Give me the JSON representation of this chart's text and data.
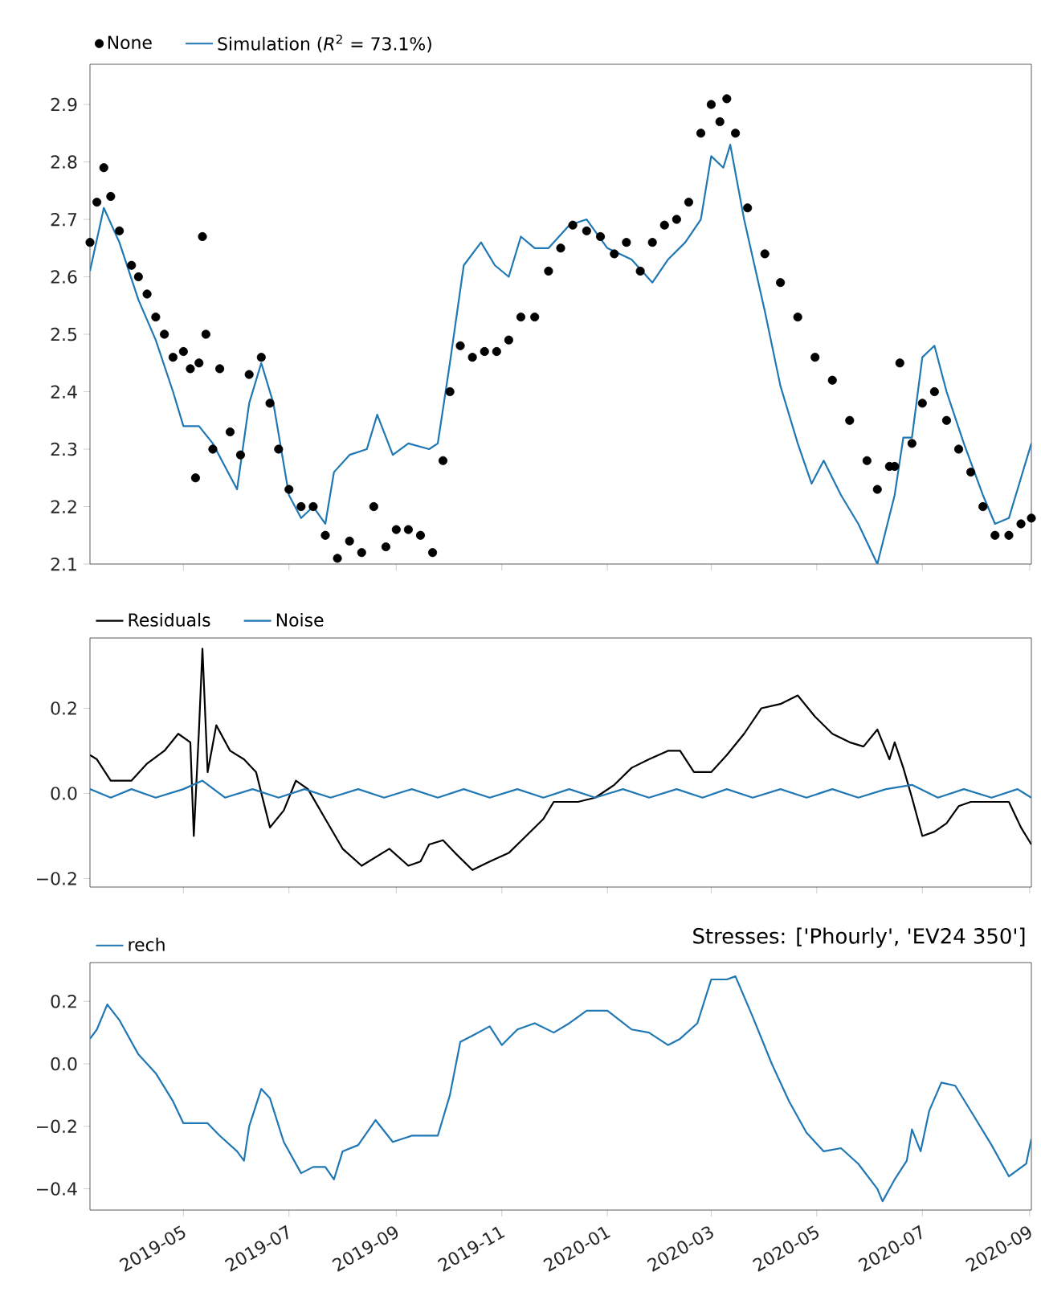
{
  "chart_data": [
    {
      "type": "line",
      "legend": "top left",
      "tick_labels": "y",
      "xlim": [
        "2019-03-08",
        "2020-09-02"
      ],
      "xticks": [
        "2019-05",
        "2019-07",
        "2019-09",
        "2019-11",
        "2020-01",
        "2020-03",
        "2020-05",
        "2020-07",
        "2020-09"
      ],
      "ylim": [
        2.1,
        2.97
      ],
      "yticks": [
        2.1,
        2.2,
        2.3,
        2.4,
        2.5,
        2.6,
        2.7,
        2.8,
        2.9
      ],
      "series": [
        {
          "name": "None",
          "type": "scatter",
          "color": "#000000",
          "x": [
            "2019-03-08",
            "2019-03-12",
            "2019-03-16",
            "2019-03-20",
            "2019-03-25",
            "2019-04-01",
            "2019-04-05",
            "2019-04-10",
            "2019-04-15",
            "2019-04-20",
            "2019-04-25",
            "2019-05-01",
            "2019-05-05",
            "2019-05-08",
            "2019-05-10",
            "2019-05-12",
            "2019-05-14",
            "2019-05-18",
            "2019-05-22",
            "2019-05-28",
            "2019-06-03",
            "2019-06-08",
            "2019-06-15",
            "2019-06-20",
            "2019-06-25",
            "2019-07-01",
            "2019-07-08",
            "2019-07-15",
            "2019-07-22",
            "2019-07-29",
            "2019-08-05",
            "2019-08-12",
            "2019-08-19",
            "2019-08-26",
            "2019-09-01",
            "2019-09-08",
            "2019-09-15",
            "2019-09-22",
            "2019-09-28",
            "2019-10-02",
            "2019-10-08",
            "2019-10-15",
            "2019-10-22",
            "2019-10-29",
            "2019-11-05",
            "2019-11-12",
            "2019-11-20",
            "2019-11-28",
            "2019-12-05",
            "2019-12-12",
            "2019-12-20",
            "2019-12-28",
            "2020-01-05",
            "2020-01-12",
            "2020-01-20",
            "2020-01-27",
            "2020-02-03",
            "2020-02-10",
            "2020-02-17",
            "2020-02-24",
            "2020-03-01",
            "2020-03-06",
            "2020-03-10",
            "2020-03-15",
            "2020-03-22",
            "2020-04-01",
            "2020-04-10",
            "2020-04-20",
            "2020-04-30",
            "2020-05-10",
            "2020-05-20",
            "2020-05-30",
            "2020-06-05",
            "2020-06-12",
            "2020-06-15",
            "2020-06-18",
            "2020-06-25",
            "2020-07-01",
            "2020-07-08",
            "2020-07-15",
            "2020-07-22",
            "2020-07-29",
            "2020-08-05",
            "2020-08-12",
            "2020-08-20",
            "2020-08-27",
            "2020-09-02"
          ],
          "values": [
            2.66,
            2.73,
            2.79,
            2.74,
            2.68,
            2.62,
            2.6,
            2.57,
            2.53,
            2.5,
            2.46,
            2.47,
            2.44,
            2.25,
            2.45,
            2.67,
            2.5,
            2.3,
            2.44,
            2.33,
            2.29,
            2.43,
            2.46,
            2.38,
            2.3,
            2.23,
            2.2,
            2.2,
            2.15,
            2.11,
            2.14,
            2.12,
            2.2,
            2.13,
            2.16,
            2.16,
            2.15,
            2.12,
            2.28,
            2.4,
            2.48,
            2.46,
            2.47,
            2.47,
            2.49,
            2.53,
            2.53,
            2.61,
            2.65,
            2.69,
            2.68,
            2.67,
            2.64,
            2.66,
            2.61,
            2.66,
            2.69,
            2.7,
            2.73,
            2.85,
            2.9,
            2.87,
            2.91,
            2.85,
            2.72,
            2.64,
            2.59,
            2.53,
            2.46,
            2.42,
            2.35,
            2.28,
            2.23,
            2.27,
            2.27,
            2.45,
            2.31,
            2.38,
            2.4,
            2.35,
            2.3,
            2.26,
            2.2,
            2.15,
            2.15,
            2.17,
            2.18
          ]
        },
        {
          "name": "Simulation (*R*$^{2}$ = 73.1%)",
          "color": "#1f77b4",
          "x": [
            "2019-03-08",
            "2019-03-16",
            "2019-03-25",
            "2019-04-05",
            "2019-04-15",
            "2019-04-25",
            "2019-05-01",
            "2019-05-10",
            "2019-05-18",
            "2019-05-25",
            "2019-06-01",
            "2019-06-08",
            "2019-06-15",
            "2019-06-22",
            "2019-07-01",
            "2019-07-08",
            "2019-07-15",
            "2019-07-22",
            "2019-07-27",
            "2019-08-05",
            "2019-08-15",
            "2019-08-21",
            "2019-08-30",
            "2019-09-08",
            "2019-09-20",
            "2019-09-25",
            "2019-10-02",
            "2019-10-10",
            "2019-10-20",
            "2019-10-28",
            "2019-11-05",
            "2019-11-12",
            "2019-11-20",
            "2019-11-28",
            "2019-12-10",
            "2019-12-20",
            "2020-01-01",
            "2020-01-15",
            "2020-01-27",
            "2020-02-05",
            "2020-02-15",
            "2020-02-24",
            "2020-03-01",
            "2020-03-08",
            "2020-03-12",
            "2020-03-20",
            "2020-04-01",
            "2020-04-10",
            "2020-04-20",
            "2020-04-28",
            "2020-05-05",
            "2020-05-15",
            "2020-05-25",
            "2020-06-05",
            "2020-06-15",
            "2020-06-20",
            "2020-06-25",
            "2020-07-01",
            "2020-07-08",
            "2020-07-15",
            "2020-07-25",
            "2020-08-05",
            "2020-08-12",
            "2020-08-20",
            "2020-08-27",
            "2020-09-02"
          ],
          "values": [
            2.61,
            2.72,
            2.66,
            2.56,
            2.49,
            2.4,
            2.34,
            2.34,
            2.31,
            2.27,
            2.23,
            2.38,
            2.45,
            2.38,
            2.22,
            2.18,
            2.2,
            2.17,
            2.26,
            2.29,
            2.3,
            2.36,
            2.29,
            2.31,
            2.3,
            2.31,
            2.45,
            2.62,
            2.66,
            2.62,
            2.6,
            2.67,
            2.65,
            2.65,
            2.69,
            2.7,
            2.65,
            2.63,
            2.59,
            2.63,
            2.66,
            2.7,
            2.81,
            2.79,
            2.83,
            2.7,
            2.54,
            2.41,
            2.31,
            2.24,
            2.28,
            2.22,
            2.17,
            2.1,
            2.22,
            2.32,
            2.32,
            2.46,
            2.48,
            2.4,
            2.31,
            2.22,
            2.17,
            2.18,
            2.25,
            2.31
          ]
        }
      ]
    },
    {
      "type": "line",
      "legend": "top left",
      "tick_labels": "y",
      "xlim": [
        "2019-03-08",
        "2020-09-02"
      ],
      "xticks": [
        "2019-05",
        "2019-07",
        "2019-09",
        "2019-11",
        "2020-01",
        "2020-03",
        "2020-05",
        "2020-07",
        "2020-09"
      ],
      "ylim": [
        -0.22,
        0.365
      ],
      "yticks": [
        {
          "value": -0.2,
          "label": "−0.2"
        },
        {
          "value": 0.0,
          "label": "0.0"
        },
        0.2
      ],
      "series": [
        {
          "name": "Residuals",
          "color": "#000000",
          "x": [
            "2019-03-08",
            "2019-03-12",
            "2019-03-20",
            "2019-04-01",
            "2019-04-10",
            "2019-04-20",
            "2019-04-28",
            "2019-05-05",
            "2019-05-07",
            "2019-05-10",
            "2019-05-12",
            "2019-05-15",
            "2019-05-20",
            "2019-05-28",
            "2019-06-05",
            "2019-06-12",
            "2019-06-20",
            "2019-06-28",
            "2019-07-05",
            "2019-07-12",
            "2019-07-22",
            "2019-08-01",
            "2019-08-12",
            "2019-08-20",
            "2019-08-28",
            "2019-09-08",
            "2019-09-15",
            "2019-09-20",
            "2019-09-28",
            "2019-10-05",
            "2019-10-15",
            "2019-10-25",
            "2019-11-05",
            "2019-11-15",
            "2019-11-25",
            "2019-12-01",
            "2019-12-15",
            "2019-12-25",
            "2020-01-05",
            "2020-01-15",
            "2020-01-25",
            "2020-02-05",
            "2020-02-12",
            "2020-02-20",
            "2020-03-01",
            "2020-03-10",
            "2020-03-20",
            "2020-03-30",
            "2020-04-10",
            "2020-04-20",
            "2020-04-30",
            "2020-05-10",
            "2020-05-20",
            "2020-05-28",
            "2020-06-05",
            "2020-06-12",
            "2020-06-15",
            "2020-06-20",
            "2020-06-25",
            "2020-07-01",
            "2020-07-08",
            "2020-07-15",
            "2020-07-22",
            "2020-07-29",
            "2020-08-05",
            "2020-08-12",
            "2020-08-20",
            "2020-08-27",
            "2020-09-02"
          ],
          "values": [
            0.09,
            0.08,
            0.03,
            0.03,
            0.07,
            0.1,
            0.14,
            0.12,
            -0.1,
            0.15,
            0.34,
            0.05,
            0.16,
            0.1,
            0.08,
            0.05,
            -0.08,
            -0.04,
            0.03,
            0.01,
            -0.06,
            -0.13,
            -0.17,
            -0.15,
            -0.13,
            -0.17,
            -0.16,
            -0.12,
            -0.11,
            -0.14,
            -0.18,
            -0.16,
            -0.14,
            -0.1,
            -0.06,
            -0.02,
            -0.02,
            -0.01,
            0.02,
            0.06,
            0.08,
            0.1,
            0.1,
            0.05,
            0.05,
            0.09,
            0.14,
            0.2,
            0.21,
            0.23,
            0.18,
            0.14,
            0.12,
            0.11,
            0.15,
            0.08,
            0.12,
            0.06,
            -0.01,
            -0.1,
            -0.09,
            -0.07,
            -0.03,
            -0.02,
            -0.02,
            -0.02,
            -0.02,
            -0.08,
            -0.12
          ]
        },
        {
          "name": "Noise",
          "color": "#1f77b4",
          "x": [
            "2019-03-08",
            "2019-03-20",
            "2019-04-01",
            "2019-04-15",
            "2019-05-01",
            "2019-05-12",
            "2019-05-25",
            "2019-06-10",
            "2019-06-25",
            "2019-07-10",
            "2019-07-25",
            "2019-08-10",
            "2019-08-25",
            "2019-09-10",
            "2019-09-25",
            "2019-10-10",
            "2019-10-25",
            "2019-11-10",
            "2019-11-25",
            "2019-12-10",
            "2019-12-25",
            "2020-01-10",
            "2020-01-25",
            "2020-02-10",
            "2020-02-25",
            "2020-03-10",
            "2020-03-25",
            "2020-04-10",
            "2020-04-25",
            "2020-05-10",
            "2020-05-25",
            "2020-06-10",
            "2020-06-25",
            "2020-07-10",
            "2020-07-25",
            "2020-08-10",
            "2020-08-25",
            "2020-09-02"
          ],
          "values": [
            0.01,
            -0.01,
            0.01,
            -0.01,
            0.01,
            0.03,
            -0.01,
            0.01,
            -0.01,
            0.01,
            -0.01,
            0.01,
            -0.01,
            0.01,
            -0.01,
            0.01,
            -0.01,
            0.01,
            -0.01,
            0.01,
            -0.01,
            0.01,
            -0.01,
            0.01,
            -0.01,
            0.01,
            -0.01,
            0.01,
            -0.01,
            0.01,
            -0.01,
            0.01,
            0.02,
            -0.01,
            0.01,
            -0.01,
            0.01,
            -0.01
          ]
        }
      ]
    },
    {
      "type": "line",
      "legend": "top left",
      "title": "Stresses: ['Phourly', 'EV24 350']",
      "xlim": [
        "2019-03-08",
        "2020-09-02"
      ],
      "xticks": [
        "2019-05",
        "2019-07",
        "2019-09",
        "2019-11",
        "2020-01",
        "2020-03",
        "2020-05",
        "2020-07",
        "2020-09"
      ],
      "ylim": [
        -0.468,
        0.324
      ],
      "yticks": [
        {
          "value": -0.4,
          "label": "−0.4"
        },
        {
          "value": -0.2,
          "label": "−0.2"
        },
        {
          "value": 0.0,
          "label": "0.0"
        },
        0.2
      ],
      "series": [
        {
          "name": "rech",
          "color": "#1f77b4",
          "x": [
            "2019-03-08",
            "2019-03-12",
            "2019-03-18",
            "2019-03-25",
            "2019-04-05",
            "2019-04-15",
            "2019-04-25",
            "2019-05-01",
            "2019-05-15",
            "2019-05-22",
            "2019-06-01",
            "2019-06-05",
            "2019-06-08",
            "2019-06-15",
            "2019-06-20",
            "2019-06-28",
            "2019-07-08",
            "2019-07-15",
            "2019-07-22",
            "2019-07-27",
            "2019-08-01",
            "2019-08-10",
            "2019-08-20",
            "2019-08-30",
            "2019-09-10",
            "2019-09-25",
            "2019-10-02",
            "2019-10-08",
            "2019-10-15",
            "2019-10-25",
            "2019-11-01",
            "2019-11-10",
            "2019-11-20",
            "2019-12-01",
            "2019-12-10",
            "2019-12-20",
            "2020-01-01",
            "2020-01-15",
            "2020-01-25",
            "2020-02-05",
            "2020-02-12",
            "2020-02-22",
            "2020-03-01",
            "2020-03-10",
            "2020-03-15",
            "2020-03-25",
            "2020-04-05",
            "2020-04-15",
            "2020-04-25",
            "2020-05-05",
            "2020-05-15",
            "2020-05-25",
            "2020-06-05",
            "2020-06-08",
            "2020-06-15",
            "2020-06-22",
            "2020-06-25",
            "2020-06-30",
            "2020-07-05",
            "2020-07-12",
            "2020-07-20",
            "2020-07-30",
            "2020-08-10",
            "2020-08-20",
            "2020-08-30",
            "2020-09-02"
          ],
          "values": [
            0.08,
            0.11,
            0.19,
            0.14,
            0.03,
            -0.03,
            -0.12,
            -0.19,
            -0.19,
            -0.23,
            -0.28,
            -0.31,
            -0.2,
            -0.08,
            -0.11,
            -0.25,
            -0.35,
            -0.33,
            -0.33,
            -0.37,
            -0.28,
            -0.26,
            -0.18,
            -0.25,
            -0.23,
            -0.23,
            -0.1,
            0.07,
            0.09,
            0.12,
            0.06,
            0.11,
            0.13,
            0.1,
            0.13,
            0.17,
            0.17,
            0.11,
            0.1,
            0.06,
            0.08,
            0.13,
            0.27,
            0.27,
            0.28,
            0.15,
            0.0,
            -0.12,
            -0.22,
            -0.28,
            -0.27,
            -0.32,
            -0.4,
            -0.44,
            -0.37,
            -0.31,
            -0.21,
            -0.28,
            -0.15,
            -0.06,
            -0.07,
            -0.16,
            -0.26,
            -0.36,
            -0.32,
            -0.24
          ]
        }
      ]
    }
  ]
}
